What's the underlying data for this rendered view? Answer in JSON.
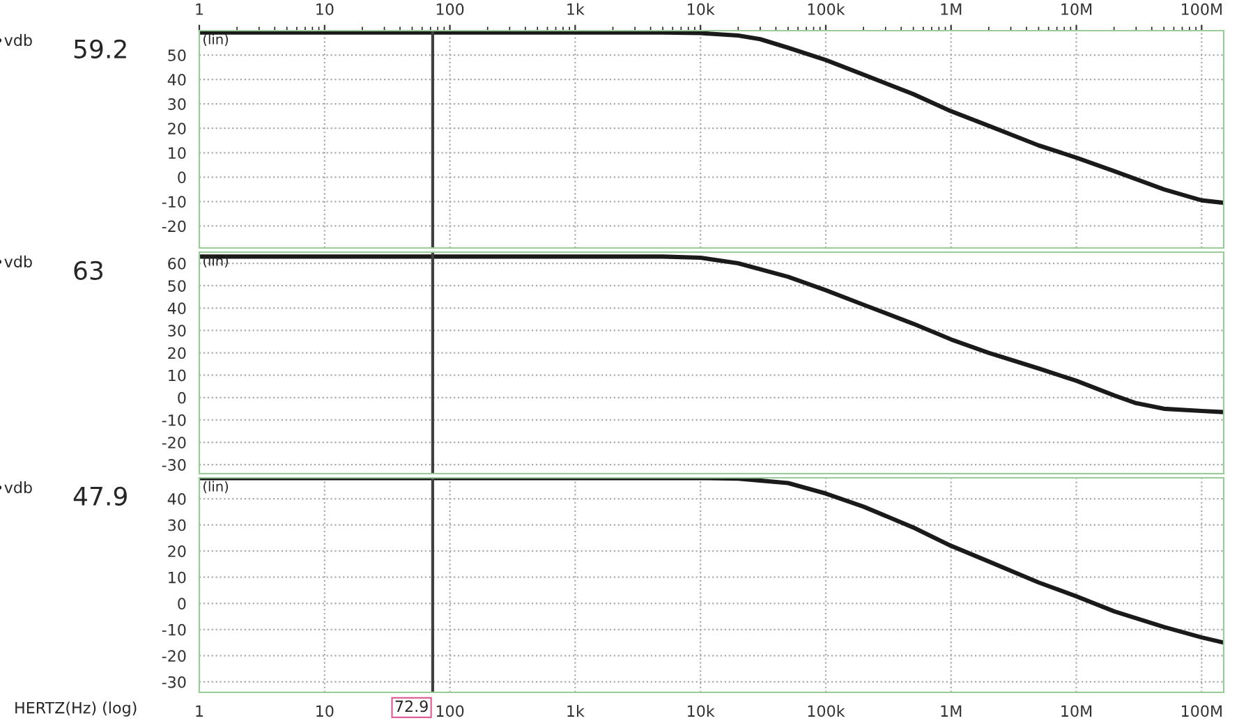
{
  "chart_data": [
    {
      "type": "line",
      "log": "x",
      "grid": true,
      "legend": "left",
      "marker": "none",
      "line_style": "solid",
      "xlim": [
        1,
        150000000
      ],
      "xticks": [
        1,
        10,
        100,
        {
          "value": 1000,
          "label": "1k"
        },
        {
          "value": 10000,
          "label": "10k"
        },
        {
          "value": 100000,
          "label": "100k"
        },
        {
          "value": 1000000,
          "label": "1M"
        },
        {
          "value": 10000000,
          "label": "10M"
        },
        {
          "value": 100000000,
          "label": "100M"
        }
      ],
      "ylim": [
        -29,
        60
      ],
      "yticks": [
        -20,
        -10,
        0,
        10,
        20,
        30,
        40,
        50
      ],
      "annotations": [
        "59.2",
        "(lin)"
      ],
      "ref_lines": [
        {
          "axis": "x",
          "value": 72.9,
          "label": null,
          "color": "#404040"
        }
      ],
      "series": [
        {
          "name": "vdb",
          "color": "#1a1a1a",
          "x": [
            1,
            1000,
            5000,
            10000,
            20000,
            30000,
            50000,
            100000,
            200000,
            500000,
            1000000,
            2000000,
            5000000,
            10000000,
            20000000,
            50000000,
            100000000,
            150000000
          ],
          "values": [
            59.2,
            59.2,
            59.2,
            59,
            58,
            56.5,
            53,
            48,
            42,
            34,
            27,
            21,
            13,
            8,
            2.5,
            -5,
            -9.5,
            -10.5
          ]
        }
      ]
    },
    {
      "type": "line",
      "log": "x",
      "grid": true,
      "legend": "left",
      "tick_labels": "y",
      "marker": "none",
      "line_style": "solid",
      "xlim": [
        1,
        150000000
      ],
      "ylim": [
        -34,
        65
      ],
      "yticks": [
        -30,
        -20,
        -10,
        0,
        10,
        20,
        30,
        40,
        50,
        60
      ],
      "annotations": [
        "63",
        "(lin)"
      ],
      "ref_lines": [
        {
          "axis": "x",
          "value": 72.9,
          "label": null,
          "color": "#404040"
        }
      ],
      "series": [
        {
          "name": "vdb",
          "color": "#1a1a1a",
          "x": [
            1,
            5000,
            10000,
            20000,
            50000,
            100000,
            200000,
            500000,
            1000000,
            2000000,
            5000000,
            10000000,
            20000000,
            30000000,
            50000000,
            100000000,
            150000000
          ],
          "values": [
            63,
            63,
            62.5,
            60,
            54,
            48,
            41.5,
            33,
            26,
            20,
            13,
            7.5,
            1,
            -2.5,
            -5,
            -6,
            -6.5
          ]
        }
      ]
    },
    {
      "type": "line",
      "xlabel": "HERTZ(Hz) (log)",
      "log": "x",
      "grid": true,
      "legend": "left",
      "marker": "none",
      "line_style": "solid",
      "xlim": [
        1,
        150000000
      ],
      "xticks": [
        1,
        10,
        100,
        {
          "value": 1000,
          "label": "1k"
        },
        {
          "value": 10000,
          "label": "10k"
        },
        {
          "value": 100000,
          "label": "100k"
        },
        {
          "value": 1000000,
          "label": "1M"
        },
        {
          "value": 10000000,
          "label": "10M"
        },
        {
          "value": 100000000,
          "label": "100M"
        }
      ],
      "ylim": [
        -34,
        48
      ],
      "yticks": [
        -30,
        -20,
        -10,
        0,
        10,
        20,
        30,
        40
      ],
      "annotations": [
        "47.9",
        "(lin)"
      ],
      "ref_lines": [
        {
          "axis": "x",
          "value": 72.9,
          "label": "72.9",
          "color": "#404040"
        }
      ],
      "series": [
        {
          "name": "vdb",
          "color": "#1a1a1a",
          "x": [
            1,
            10000,
            20000,
            50000,
            100000,
            200000,
            500000,
            1000000,
            2000000,
            5000000,
            10000000,
            20000000,
            50000000,
            100000000,
            150000000
          ],
          "values": [
            47.9,
            47.9,
            47.7,
            46,
            42,
            37,
            29,
            22,
            16,
            8,
            2.7,
            -3,
            -9,
            -13,
            -15
          ]
        }
      ]
    }
  ]
}
